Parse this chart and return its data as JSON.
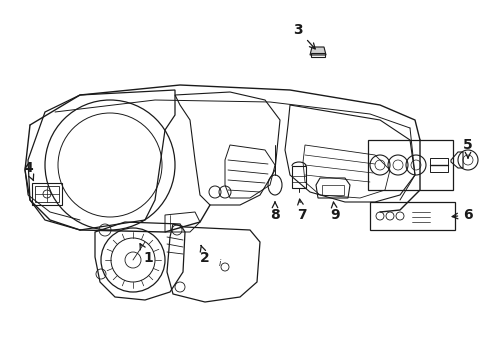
{
  "bg_color": "#ffffff",
  "line_color": "#1a1a1a",
  "figsize": [
    4.89,
    3.6
  ],
  "dpi": 100,
  "text_fontsize": 9,
  "label_fontsize": 10
}
